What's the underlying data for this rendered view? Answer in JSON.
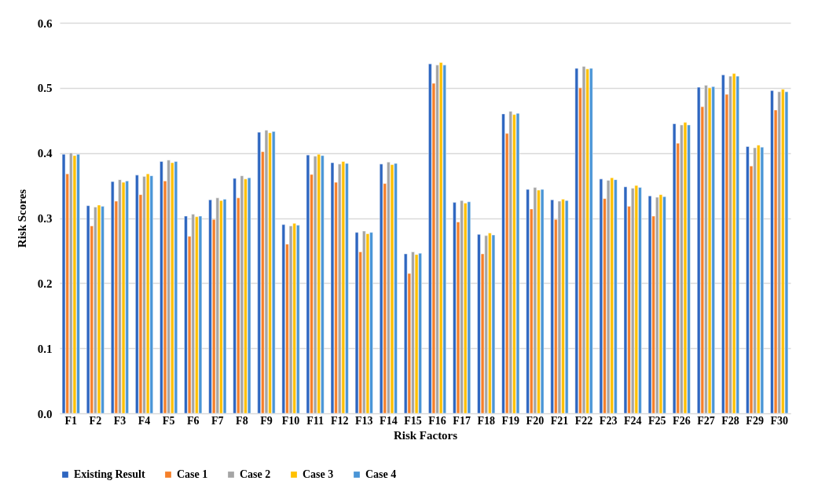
{
  "chart_data": {
    "type": "bar",
    "xlabel": "Risk Factors",
    "ylabel": "Risk Scores",
    "categories": [
      "F1",
      "F2",
      "F3",
      "F4",
      "F5",
      "F6",
      "F7",
      "F8",
      "F9",
      "F10",
      "F11",
      "F12",
      "F13",
      "F14",
      "F15",
      "F16",
      "F17",
      "F18",
      "F19",
      "F20",
      "F21",
      "F22",
      "F23",
      "F24",
      "F25",
      "F26",
      "F27",
      "F28",
      "F29",
      "F30"
    ],
    "series": [
      {
        "name": "Existing Result",
        "color": "#2e66c0",
        "values": [
          0.398,
          0.319,
          0.356,
          0.366,
          0.387,
          0.303,
          0.328,
          0.361,
          0.432,
          0.29,
          0.397,
          0.385,
          0.278,
          0.383,
          0.245,
          0.537,
          0.324,
          0.275,
          0.46,
          0.344,
          0.328,
          0.53,
          0.36,
          0.348,
          0.334,
          0.445,
          0.501,
          0.52,
          0.41,
          0.496
        ]
      },
      {
        "name": "Case 1",
        "color": "#f5802a",
        "values": [
          0.368,
          0.288,
          0.326,
          0.336,
          0.357,
          0.272,
          0.298,
          0.331,
          0.402,
          0.26,
          0.367,
          0.355,
          0.248,
          0.353,
          0.215,
          0.507,
          0.294,
          0.245,
          0.43,
          0.314,
          0.298,
          0.5,
          0.33,
          0.318,
          0.303,
          0.415,
          0.471,
          0.49,
          0.38,
          0.466
        ]
      },
      {
        "name": "Case 2",
        "color": "#a5a5a5",
        "values": [
          0.4,
          0.317,
          0.359,
          0.364,
          0.389,
          0.306,
          0.331,
          0.365,
          0.435,
          0.288,
          0.395,
          0.383,
          0.28,
          0.386,
          0.248,
          0.535,
          0.327,
          0.273,
          0.464,
          0.347,
          0.326,
          0.533,
          0.358,
          0.346,
          0.332,
          0.443,
          0.504,
          0.518,
          0.408,
          0.494
        ]
      },
      {
        "name": "Case 3",
        "color": "#ffc000",
        "values": [
          0.396,
          0.32,
          0.355,
          0.368,
          0.385,
          0.302,
          0.327,
          0.36,
          0.431,
          0.292,
          0.398,
          0.387,
          0.276,
          0.382,
          0.244,
          0.539,
          0.323,
          0.277,
          0.459,
          0.343,
          0.329,
          0.529,
          0.362,
          0.35,
          0.336,
          0.447,
          0.5,
          0.522,
          0.412,
          0.498
        ]
      },
      {
        "name": "Case 4",
        "color": "#4a95d6",
        "values": [
          0.398,
          0.318,
          0.357,
          0.365,
          0.387,
          0.303,
          0.329,
          0.362,
          0.433,
          0.289,
          0.396,
          0.384,
          0.278,
          0.384,
          0.246,
          0.535,
          0.325,
          0.274,
          0.461,
          0.344,
          0.327,
          0.53,
          0.359,
          0.347,
          0.333,
          0.443,
          0.502,
          0.518,
          0.409,
          0.494
        ]
      }
    ],
    "ylim": [
      0,
      0.6
    ],
    "yticks": [
      {
        "value": 0,
        "label": "0.0"
      },
      0.1,
      0.2,
      0.3,
      0.4,
      0.5,
      0.6
    ],
    "grid": "y",
    "legend": "bottom"
  }
}
